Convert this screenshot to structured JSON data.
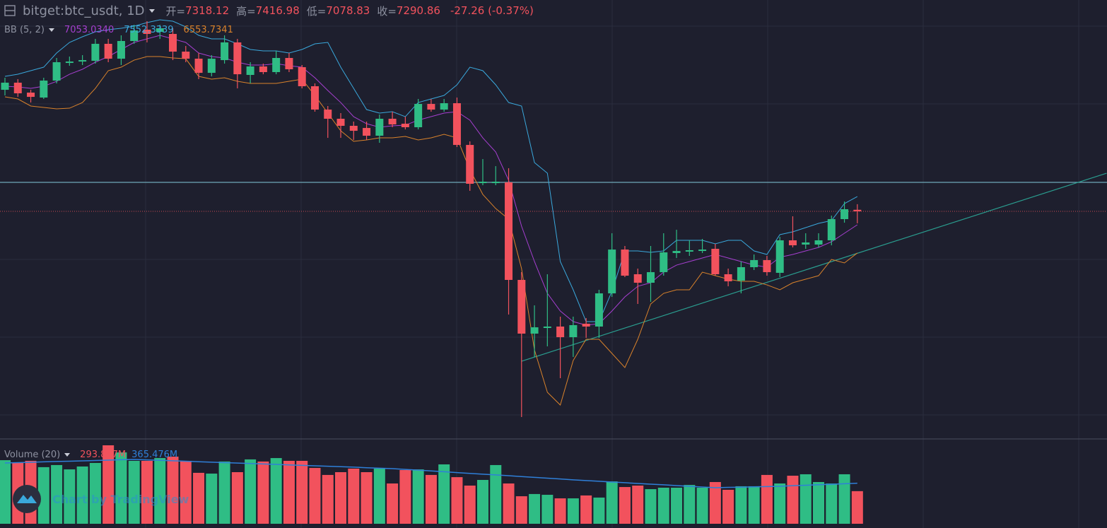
{
  "chart_data": {
    "type": "candlestick",
    "symbol": "bitget:btc_usdt, 1D",
    "ohlc_labels": [
      "开=",
      "高=",
      "低=",
      "收="
    ],
    "change": "-27.26 (-0.37%)",
    "ylim": [
      3278,
      11028
    ],
    "colors": {
      "up": "#2fbd85",
      "down": "#f2525d"
    },
    "open": [
      9440,
      9566,
      9390,
      9303,
      9603,
      9915,
      9940,
      9953,
      10253,
      9990,
      10303,
      10503,
      10465,
      10428,
      10115,
      9990,
      9740,
      9965,
      10278,
      9703,
      9853,
      9753,
      10003,
      9840,
      9503,
      9090,
      8928,
      8803,
      8765,
      8628,
      8928,
      8840,
      8778,
      9190,
      9090,
      9203,
      8465,
      7790,
      7790,
      7803,
      6078,
      5128,
      5228,
      5253,
      5065,
      5303,
      5253,
      5840,
      6615,
      6178,
      6028,
      6215,
      6553,
      6578,
      6590,
      6628,
      6178,
      6065,
      6303,
      6428,
      6203,
      6778,
      6703,
      6703,
      6778,
      7153,
      7318.12
    ],
    "high": [
      9653,
      9628,
      9440,
      9653,
      10003,
      10028,
      10053,
      10340,
      10340,
      10403,
      10590,
      10653,
      10590,
      10528,
      10215,
      10090,
      10053,
      10403,
      10340,
      9928,
      9903,
      10128,
      10090,
      9878,
      9553,
      9153,
      9028,
      8878,
      8878,
      9003,
      9053,
      8965,
      9278,
      9278,
      9278,
      9303,
      8528,
      8215,
      8090,
      8053,
      6215,
      5628,
      6178,
      5428,
      5428,
      5403,
      5903,
      6903,
      6678,
      6278,
      6678,
      6903,
      6965,
      6778,
      6803,
      6715,
      6278,
      6403,
      6528,
      6503,
      6840,
      7203,
      6903,
      6903,
      7215,
      7465,
      7416.98
    ],
    "low": [
      9340,
      9315,
      9215,
      9278,
      9553,
      9865,
      9878,
      9903,
      9928,
      9878,
      10253,
      10278,
      10340,
      9965,
      9928,
      9628,
      9678,
      9903,
      9465,
      9553,
      9715,
      9715,
      9753,
      9465,
      9053,
      8590,
      8590,
      8553,
      8553,
      8503,
      8778,
      8740,
      8740,
      9053,
      9053,
      8428,
      7653,
      7753,
      7753,
      5465,
      3653,
      4715,
      4903,
      4340,
      4715,
      5053,
      5053,
      5778,
      6128,
      5653,
      5690,
      6153,
      6465,
      6503,
      6553,
      6153,
      5965,
      5840,
      6253,
      6153,
      6128,
      6653,
      6628,
      6653,
      6690,
      7090,
      7078.83
    ],
    "close": [
      9566,
      9378,
      9315,
      9603,
      9928,
      9940,
      9965,
      10253,
      9990,
      10303,
      10490,
      10428,
      10528,
      10115,
      9990,
      9740,
      9990,
      10278,
      9715,
      9853,
      9753,
      10003,
      9803,
      9503,
      9090,
      8928,
      8803,
      8715,
      8628,
      8928,
      8828,
      8778,
      9190,
      9090,
      9203,
      8465,
      7778,
      7815,
      7815,
      6078,
      5128,
      5240,
      5253,
      5065,
      5278,
      5253,
      5840,
      6615,
      6153,
      6028,
      6215,
      6565,
      6590,
      6603,
      6615,
      6178,
      6053,
      6303,
      6428,
      6215,
      6778,
      6690,
      6740,
      6778,
      7153,
      7328,
      7290.86
    ],
    "bb": {
      "name": "BB (5, 2)",
      "labels": [
        "7053.0340",
        "7552.3339",
        "6553.7341"
      ],
      "colors": {
        "middle": "#a63fd0",
        "upper": "#3aa8dc",
        "lower": "#d9822b"
      },
      "middle": [
        9503,
        9490,
        9465,
        9503,
        9590,
        9715,
        9803,
        9928,
        10028,
        10153,
        10278,
        10340,
        10403,
        10340,
        10278,
        10090,
        10028,
        10003,
        9928,
        9878,
        9878,
        9903,
        9865,
        9840,
        9653,
        9428,
        9215,
        8965,
        8840,
        8778,
        8803,
        8815,
        8903,
        8965,
        9028,
        9053,
        8903,
        8590,
        8340,
        7840,
        7028,
        6403,
        5840,
        5528,
        5340,
        5278,
        5303,
        5528,
        5778,
        5965,
        6028,
        6215,
        6340,
        6403,
        6465,
        6528,
        6465,
        6403,
        6340,
        6303,
        6478,
        6528,
        6590,
        6653,
        6753,
        6903,
        7053.034
      ],
      "upper": [
        9678,
        9715,
        9778,
        9840,
        10090,
        10278,
        10378,
        10465,
        10503,
        10528,
        10565,
        10628,
        10678,
        10653,
        10553,
        10403,
        10340,
        10340,
        10253,
        10153,
        10128,
        10128,
        10090,
        10153,
        10253,
        10278,
        9840,
        9465,
        9090,
        9028,
        9053,
        8965,
        9215,
        9278,
        9340,
        9528,
        9840,
        9778,
        9528,
        9215,
        9153,
        8153,
        7965,
        6403,
        5903,
        5340,
        5340,
        5878,
        6590,
        6590,
        6565,
        6590,
        6778,
        6778,
        6778,
        6715,
        6778,
        6778,
        6590,
        6528,
        6878,
        6928,
        7003,
        7078,
        7128,
        7428,
        7552.3339
      ],
      "lower": [
        9315,
        9278,
        9153,
        9128,
        9103,
        9115,
        9215,
        9465,
        9778,
        9840,
        9965,
        10028,
        10028,
        10003,
        9990,
        9678,
        9628,
        9653,
        9590,
        9553,
        9553,
        9553,
        9590,
        9628,
        9340,
        9028,
        8715,
        8528,
        8553,
        8590,
        8590,
        8615,
        8553,
        8590,
        8653,
        8590,
        8028,
        7590,
        7340,
        7153,
        6278,
        4840,
        4090,
        3865,
        4653,
        5028,
        5028,
        4778,
        4528,
        5028,
        5653,
        5840,
        5903,
        5903,
        6215,
        6153,
        6090,
        6053,
        6053,
        5990,
        5903,
        6028,
        6090,
        6153,
        6440,
        6378,
        6553.7341
      ]
    },
    "horizontal_line": 7803,
    "trend_line": {
      "x": [
        40,
        85.3
      ],
      "y": [
        4640,
        7965
      ]
    },
    "volume": {
      "name": "Volume (20)",
      "labels": [
        "293.857M",
        "365.476M"
      ],
      "ylim": [
        0,
        758
      ],
      "ma_color": "#2f7fd8",
      "values": [
        573,
        548,
        567,
        510,
        529,
        490,
        516,
        548,
        707,
        643,
        567,
        567,
        592,
        605,
        567,
        459,
        452,
        561,
        465,
        580,
        561,
        592,
        567,
        567,
        503,
        440,
        465,
        497,
        465,
        497,
        363,
        484,
        490,
        440,
        535,
        420,
        344,
        395,
        529,
        363,
        248,
        268,
        261,
        229,
        229,
        255,
        236,
        382,
        331,
        344,
        312,
        325,
        325,
        350,
        325,
        376,
        306,
        338,
        338,
        440,
        363,
        433,
        446,
        376,
        363,
        446,
        293.857
      ],
      "ma": [
        548,
        551,
        554,
        558,
        561,
        564,
        567,
        570,
        573,
        577,
        580,
        576,
        572,
        568,
        564,
        559,
        555,
        551,
        547,
        543,
        539,
        535,
        530,
        526,
        522,
        518,
        514,
        510,
        505,
        501,
        497,
        490,
        483,
        476,
        469,
        461,
        454,
        447,
        440,
        433,
        425,
        418,
        411,
        404,
        396,
        389,
        383,
        376,
        370,
        363,
        357,
        351,
        344,
        338,
        331,
        325,
        328,
        330,
        333,
        335,
        338,
        343,
        347,
        352,
        356,
        361,
        365.476
      ]
    },
    "watermark": "Chart by TradingView"
  }
}
